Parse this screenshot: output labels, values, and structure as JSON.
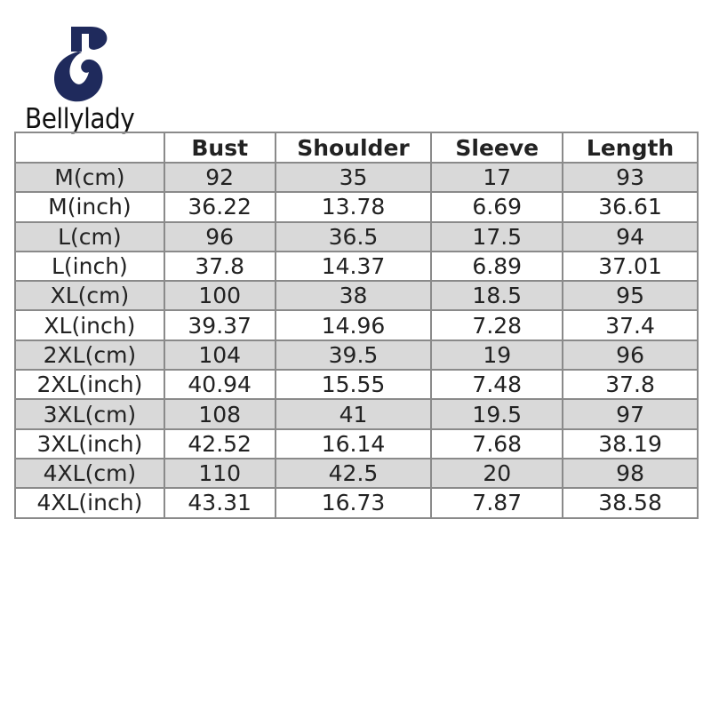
{
  "brand": {
    "name": "Bellylady",
    "logo_color": "#1f2a5c"
  },
  "table": {
    "headers": [
      "",
      "Bust",
      "Shoulder",
      "Sleeve",
      "Length"
    ],
    "rows": [
      [
        "M(cm)",
        "92",
        "35",
        "17",
        "93"
      ],
      [
        "M(inch)",
        "36.22",
        "13.78",
        "6.69",
        "36.61"
      ],
      [
        "L(cm)",
        "96",
        "36.5",
        "17.5",
        "94"
      ],
      [
        "L(inch)",
        "37.8",
        "14.37",
        "6.89",
        "37.01"
      ],
      [
        "XL(cm)",
        "100",
        "38",
        "18.5",
        "95"
      ],
      [
        "XL(inch)",
        "39.37",
        "14.96",
        "7.28",
        "37.4"
      ],
      [
        "2XL(cm)",
        "104",
        "39.5",
        "19",
        "96"
      ],
      [
        "2XL(inch)",
        "40.94",
        "15.55",
        "7.48",
        "37.8"
      ],
      [
        "3XL(cm)",
        "108",
        "41",
        "19.5",
        "97"
      ],
      [
        "3XL(inch)",
        "42.52",
        "16.14",
        "7.68",
        "38.19"
      ],
      [
        "4XL(cm)",
        "110",
        "42.5",
        "20",
        "98"
      ],
      [
        "4XL(inch)",
        "43.31",
        "16.73",
        "7.87",
        "38.58"
      ]
    ],
    "shaded_row_color": "#d9d9d9"
  }
}
